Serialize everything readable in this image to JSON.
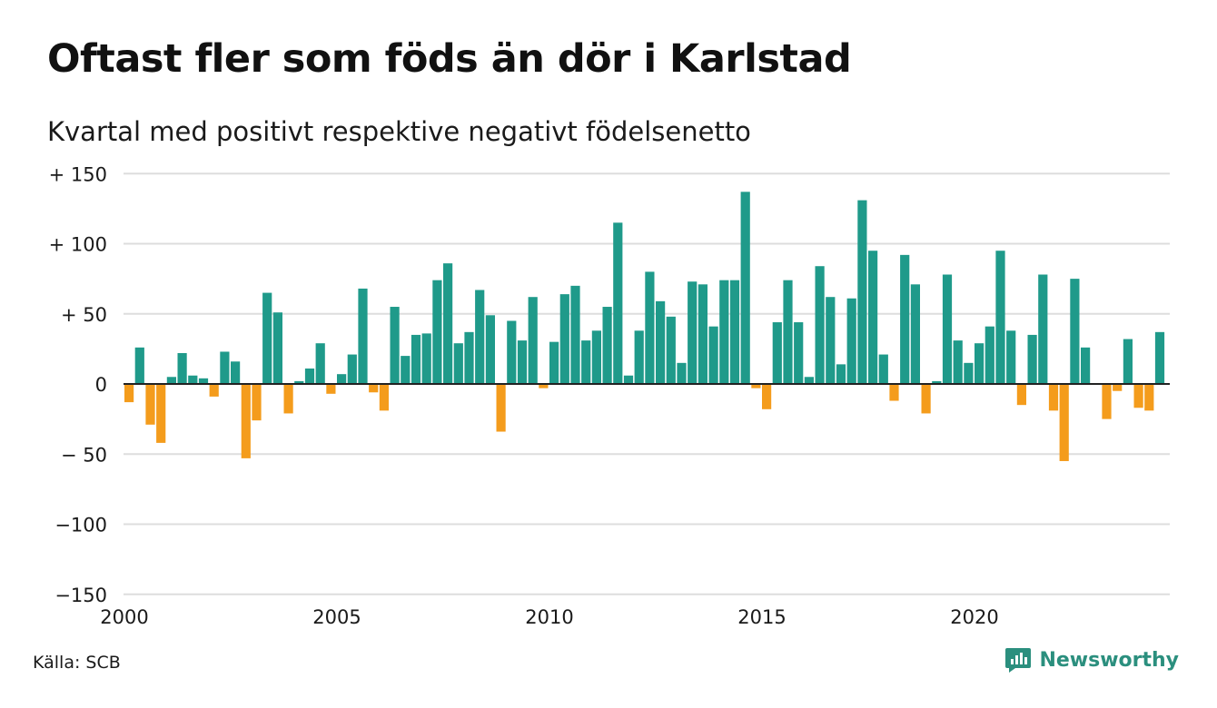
{
  "title": "Oftast fler som föds än dör i Karlstad",
  "subtitle": "Kvartal med positivt respektive negativt födelsenetto",
  "source": "Källa: SCB",
  "brand": {
    "name": "Newsworthy",
    "icon": "newsworthy-logo-icon"
  },
  "colors": {
    "positive": "#1f9a8a",
    "negative": "#f49c1c",
    "grid": "#dddddd",
    "zero_line": "#222222",
    "brand": "#2b8f7e"
  },
  "chart_data": {
    "type": "bar",
    "title": "Oftast fler som föds än dör i Karlstad",
    "subtitle": "Kvartal med positivt respektive negativt födelsenetto",
    "xlabel": "",
    "ylabel": "",
    "ylim": [
      -150,
      150
    ],
    "y_ticks": [
      {
        "value": 150,
        "label": "+ 150"
      },
      {
        "value": 100,
        "label": "+ 100"
      },
      {
        "value": 50,
        "label": "+  50"
      },
      {
        "value": 0,
        "label": "0"
      },
      {
        "value": -50,
        "label": "− 50"
      },
      {
        "value": -100,
        "label": "−100"
      },
      {
        "value": -150,
        "label": "−150"
      }
    ],
    "x_ticks": [
      {
        "year": 2000,
        "label": "2000"
      },
      {
        "year": 2005,
        "label": "2005"
      },
      {
        "year": 2010,
        "label": "2010"
      },
      {
        "year": 2015,
        "label": "2015"
      },
      {
        "year": 2020,
        "label": "2020"
      }
    ],
    "grid": true,
    "start_year": 2000,
    "values": [
      -13,
      26,
      -29,
      -42,
      5,
      22,
      6,
      4,
      -9,
      23,
      16,
      -53,
      -26,
      65,
      51,
      -21,
      2,
      11,
      29,
      -7,
      7,
      21,
      68,
      -6,
      -19,
      55,
      20,
      35,
      36,
      74,
      86,
      29,
      37,
      67,
      49,
      -34,
      45,
      31,
      62,
      -3,
      30,
      64,
      70,
      31,
      38,
      55,
      115,
      6,
      38,
      80,
      59,
      48,
      15,
      73,
      71,
      41,
      74,
      74,
      137,
      -3,
      -18,
      44,
      74,
      44,
      5,
      84,
      62,
      14,
      61,
      131,
      95,
      21,
      -12,
      92,
      71,
      -21,
      2,
      78,
      31,
      15,
      29,
      41,
      95,
      38,
      -15,
      35,
      78,
      -19,
      -55,
      75,
      26,
      0,
      -25,
      -5,
      32,
      -17,
      -19,
      37
    ]
  }
}
